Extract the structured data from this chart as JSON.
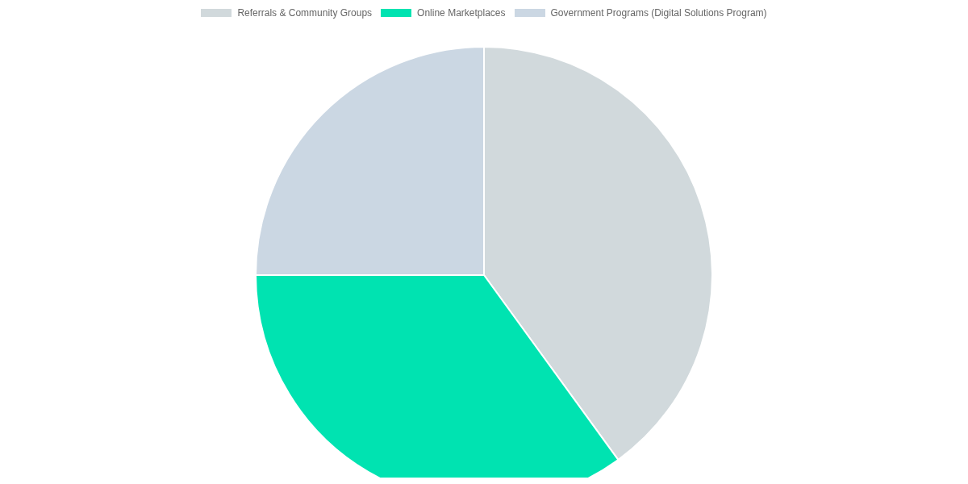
{
  "chart_data": {
    "type": "pie",
    "categories": [
      "Referrals & Community Groups",
      "Online Marketplaces",
      "Government Programs (Digital Solutions Program)"
    ],
    "values": [
      40,
      35,
      25
    ],
    "colors": [
      "#d1d9dc",
      "#00e3b1",
      "#cbd7e3"
    ],
    "legend": "top"
  }
}
